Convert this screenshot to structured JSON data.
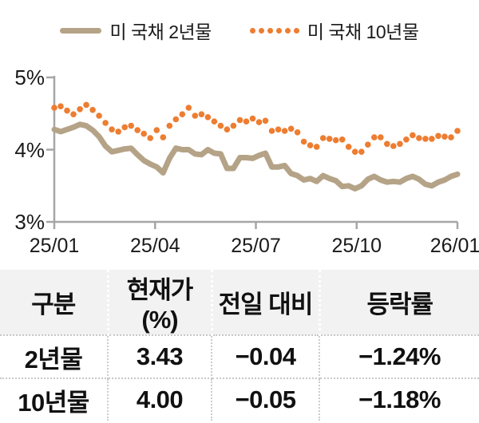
{
  "legend": {
    "series1": "미 국채 2년물",
    "series2": "미 국채 10년물"
  },
  "colors": {
    "series_2y": "#b5a387",
    "series_10y": "#ed7d31",
    "axis": "#a6a6a6",
    "header_bg": "#f2f2f2",
    "text": "#111111"
  },
  "chart_data": {
    "type": "line",
    "title": "",
    "xlabel": "",
    "ylabel": "",
    "ylim": [
      3,
      5
    ],
    "y_ticks": [
      "5%",
      "4%",
      "3%"
    ],
    "x_ticks": [
      "25/01",
      "25/04",
      "25/07",
      "25/10",
      "26/01"
    ],
    "x_range_note": "daily-ish points evenly spaced from 25/01 to 26/01",
    "grid": false,
    "legend_position": "top-center",
    "series": [
      {
        "name": "미 국채 2년물",
        "style": "solid-thick",
        "values": [
          4.28,
          4.25,
          4.28,
          4.31,
          4.35,
          4.33,
          4.27,
          4.18,
          4.05,
          3.97,
          3.99,
          4.01,
          4.02,
          3.93,
          3.85,
          3.8,
          3.76,
          3.68,
          3.88,
          4.02,
          4.0,
          4.0,
          3.94,
          3.93,
          4.0,
          3.95,
          3.94,
          3.74,
          3.74,
          3.89,
          3.89,
          3.88,
          3.92,
          3.95,
          3.76,
          3.76,
          3.78,
          3.67,
          3.64,
          3.58,
          3.6,
          3.56,
          3.64,
          3.6,
          3.57,
          3.49,
          3.5,
          3.46,
          3.5,
          3.59,
          3.63,
          3.58,
          3.55,
          3.56,
          3.55,
          3.6,
          3.63,
          3.59,
          3.52,
          3.5,
          3.55,
          3.58,
          3.63,
          3.66
        ]
      },
      {
        "name": "미 국채 10년물",
        "style": "dotted",
        "values": [
          4.58,
          4.6,
          4.54,
          4.49,
          4.56,
          4.62,
          4.55,
          4.47,
          4.37,
          4.28,
          4.25,
          4.31,
          4.33,
          4.27,
          4.22,
          4.16,
          4.27,
          4.17,
          4.33,
          4.42,
          4.49,
          4.58,
          4.47,
          4.49,
          4.45,
          4.39,
          4.33,
          4.28,
          4.33,
          4.41,
          4.39,
          4.43,
          4.38,
          4.4,
          4.26,
          4.28,
          4.26,
          4.29,
          4.24,
          4.11,
          4.06,
          4.04,
          4.16,
          4.15,
          4.13,
          4.14,
          4.04,
          3.97,
          3.97,
          4.07,
          4.17,
          4.17,
          4.08,
          4.05,
          4.08,
          4.14,
          4.2,
          4.16,
          4.15,
          4.15,
          4.19,
          4.18,
          4.17,
          4.26
        ]
      }
    ]
  },
  "table": {
    "headers": [
      "구분",
      "현재가(%)",
      "전일 대비",
      "등락률"
    ],
    "rows": [
      [
        "2년물",
        "3.43",
        "−0.04",
        "−1.24%"
      ],
      [
        "10년물",
        "4.00",
        "−0.05",
        "−1.18%"
      ]
    ]
  }
}
